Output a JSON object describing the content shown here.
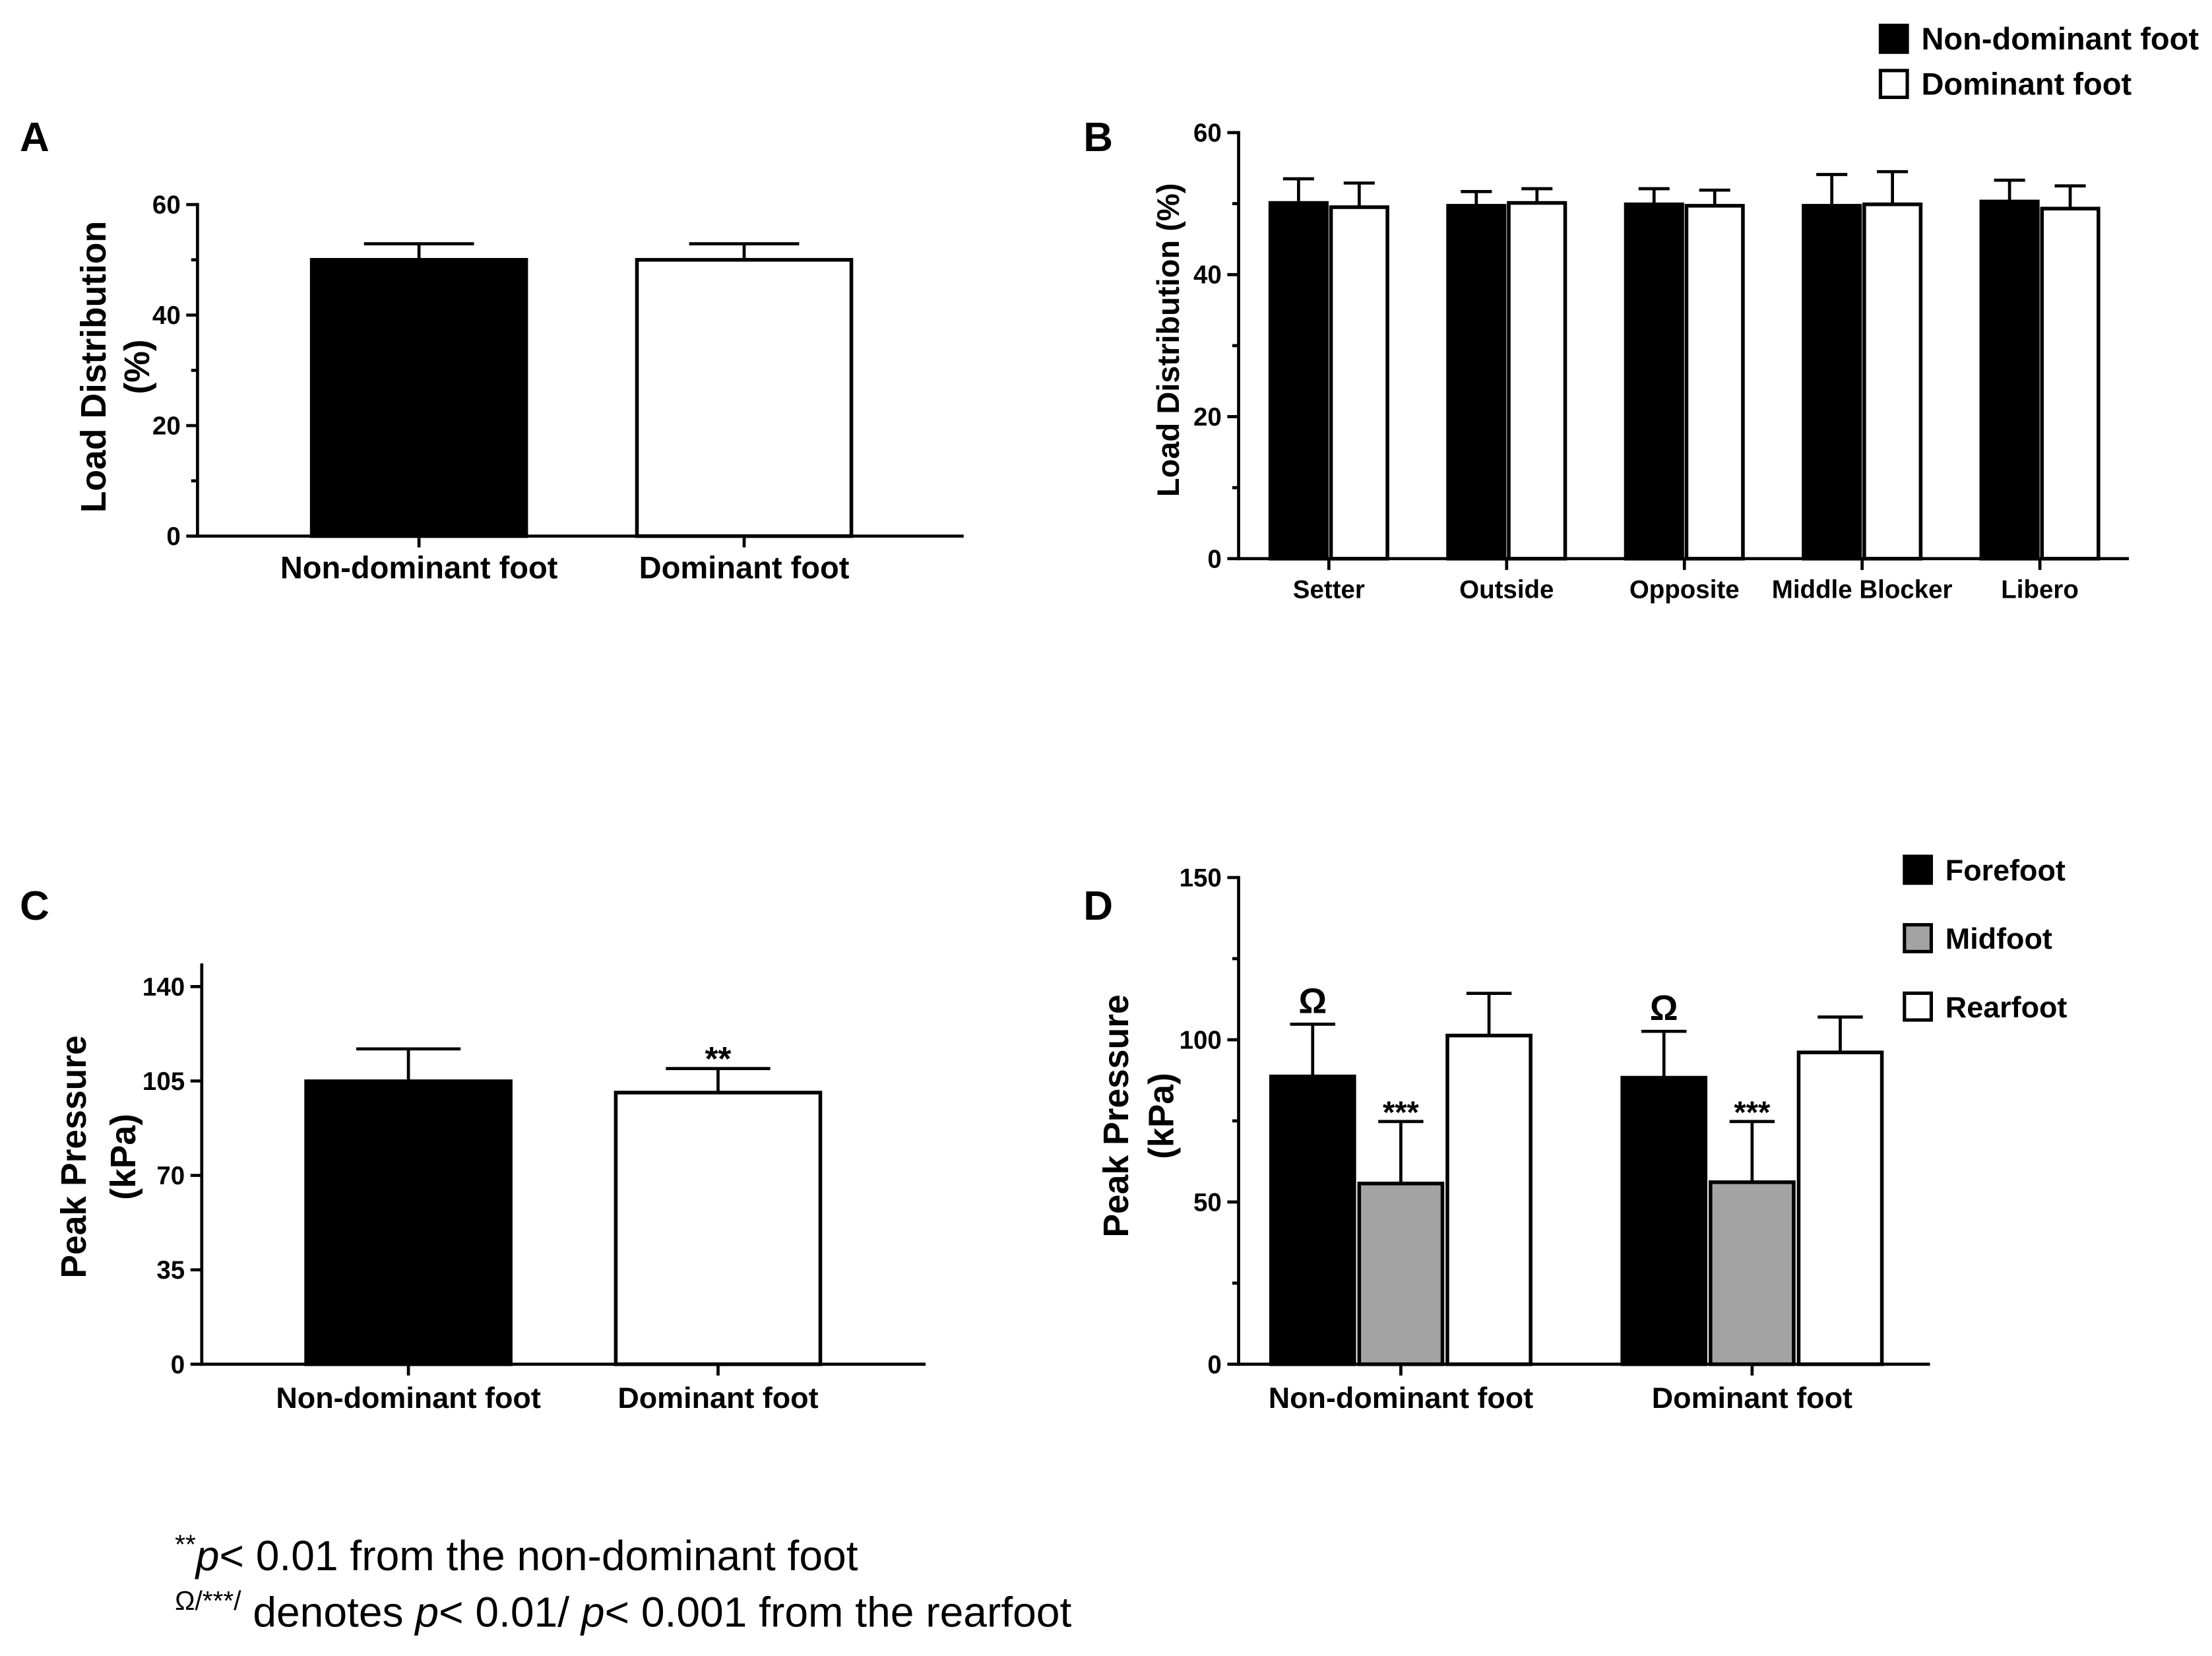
{
  "footnotes": [
    [
      {
        "sup": "**"
      },
      {
        "italic": "p"
      },
      {
        "text": "< 0.01 from the non-dominant foot"
      }
    ],
    [
      {
        "sup": "Ω/***/"
      },
      {
        "text": " denotes "
      },
      {
        "italic": "p"
      },
      {
        "text": "< 0.01/ "
      },
      {
        "italic": "p"
      },
      {
        "text": "< 0.001 from the rearfoot"
      }
    ]
  ],
  "chart_data": [
    {
      "panel": "A",
      "type": "bar",
      "categories": [
        "Non-dominant foot",
        "Dominant foot"
      ],
      "values": [
        50.0,
        50.0
      ],
      "errors": [
        2.9,
        2.9
      ],
      "bar_colors": [
        "#000000",
        "#ffffff"
      ],
      "ylabel": [
        "Load Distribution",
        "(%)"
      ],
      "ylim": [
        0,
        60
      ],
      "yticks": [
        "0",
        "20",
        "40",
        "60"
      ],
      "yminor": [
        10,
        30,
        50
      ]
    },
    {
      "panel": "B",
      "type": "bar",
      "categories": [
        "Setter",
        "Outside",
        "Opposite",
        "Middle Blocker",
        "Libero"
      ],
      "series": [
        {
          "name": "Non-dominant foot",
          "color": "#000000",
          "values": [
            50.1,
            49.7,
            49.9,
            49.7,
            50.3
          ],
          "errors": [
            3.4,
            2.0,
            2.2,
            4.4,
            3.0
          ]
        },
        {
          "name": "Dominant foot",
          "color": "#ffffff",
          "values": [
            49.5,
            50.1,
            49.7,
            49.9,
            49.3
          ],
          "errors": [
            3.4,
            2.0,
            2.2,
            4.6,
            3.2
          ]
        }
      ],
      "ylabel": [
        "Load Distribution (%)"
      ],
      "ylim": [
        0,
        60
      ],
      "yticks": [
        "0",
        "20",
        "40",
        "60"
      ],
      "yminor": [
        10,
        30,
        50
      ]
    },
    {
      "panel": "C",
      "type": "bar",
      "categories": [
        "Non-dominant foot",
        "Dominant foot"
      ],
      "values": [
        104.9,
        100.7
      ],
      "errors": [
        12.0,
        8.9
      ],
      "bar_colors": [
        "#000000",
        "#ffffff"
      ],
      "ylabel": [
        "Peak Pressure",
        "(kPa)"
      ],
      "ylim": [
        0,
        148
      ],
      "yticks": [
        "0",
        "35",
        "70",
        "105",
        "140"
      ],
      "annotations": [
        {
          "category_index": 1,
          "text": "**"
        }
      ]
    },
    {
      "panel": "D",
      "type": "bar",
      "categories": [
        "Non-dominant foot",
        "Dominant foot"
      ],
      "series": [
        {
          "name": "Forefoot",
          "color": "#000000",
          "values": [
            88.7,
            88.3
          ],
          "errors": [
            16.1,
            14.3
          ]
        },
        {
          "name": "Midfoot",
          "color": "#a3a3a3",
          "values": [
            55.7,
            56.1
          ],
          "errors": [
            19.1,
            18.7
          ]
        },
        {
          "name": "Rearfoot",
          "color": "#ffffff",
          "values": [
            101.3,
            96.1
          ],
          "errors": [
            13.0,
            10.9
          ]
        }
      ],
      "ylabel": [
        "Peak Pressure",
        "(kPa)"
      ],
      "ylim": [
        0,
        150
      ],
      "yticks": [
        "0",
        "50",
        "100",
        "150"
      ],
      "yminor": [
        25,
        75,
        125
      ],
      "annotations": [
        {
          "category_index": 0,
          "series_index": 0,
          "text": "Ω"
        },
        {
          "category_index": 0,
          "series_index": 1,
          "text": "***"
        },
        {
          "category_index": 1,
          "series_index": 0,
          "text": "Ω"
        },
        {
          "category_index": 1,
          "series_index": 1,
          "text": "***"
        }
      ]
    }
  ]
}
